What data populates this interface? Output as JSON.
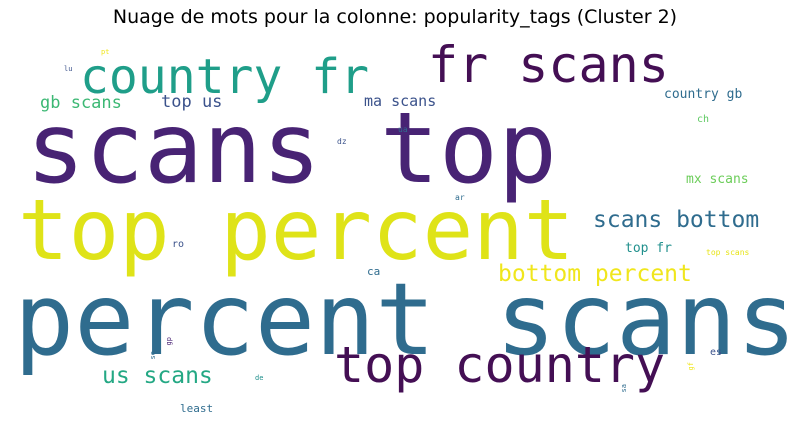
{
  "chart_data": {
    "type": "wordcloud",
    "title": "Nuage de mots pour la colonne: popularity_tags (Cluster 2)",
    "words": [
      {
        "text": "scans top",
        "color": "#482374"
      },
      {
        "text": "percent scans",
        "color": "#2f6c8e"
      },
      {
        "text": "top percent",
        "color": "#dfe318"
      },
      {
        "text": "top country",
        "color": "#440f54"
      },
      {
        "text": "country fr",
        "color": "#1f9e89"
      },
      {
        "text": "fr scans",
        "color": "#440f54"
      },
      {
        "text": "scans bottom",
        "color": "#2f6c8e"
      },
      {
        "text": "bottom percent",
        "color": "#f0e61c"
      },
      {
        "text": "us scans",
        "color": "#24a884"
      },
      {
        "text": "gb scans",
        "color": "#3cb874"
      },
      {
        "text": "top us",
        "color": "#3b528b"
      },
      {
        "text": "ma scans",
        "color": "#3b528b"
      },
      {
        "text": "country gb",
        "color": "#2f6c8e"
      },
      {
        "text": "mx scans",
        "color": "#6ccd5a"
      },
      {
        "text": "top fr",
        "color": "#21908d"
      },
      {
        "text": "top scans",
        "color": "#e7e419"
      },
      {
        "text": "ch",
        "color": "#5ec962"
      },
      {
        "text": "least",
        "color": "#2f6c8e"
      },
      {
        "text": "ro",
        "color": "#3b528b"
      },
      {
        "text": "ca",
        "color": "#2f6c8e"
      },
      {
        "text": "es",
        "color": "#3b528b"
      },
      {
        "text": "ua",
        "color": "#2f6c8e"
      },
      {
        "text": "dz",
        "color": "#3b528b"
      },
      {
        "text": "ar",
        "color": "#2f6c8e"
      },
      {
        "text": "pt",
        "color": "#f0e61c"
      },
      {
        "text": "lu",
        "color": "#3b528b"
      },
      {
        "text": "se",
        "color": "#2f6c8e"
      },
      {
        "text": "gp",
        "color": "#482374"
      },
      {
        "text": "de",
        "color": "#21908d"
      },
      {
        "text": "sa",
        "color": "#2f6c8e"
      },
      {
        "text": "gf",
        "color": "#f0e61c"
      }
    ]
  }
}
